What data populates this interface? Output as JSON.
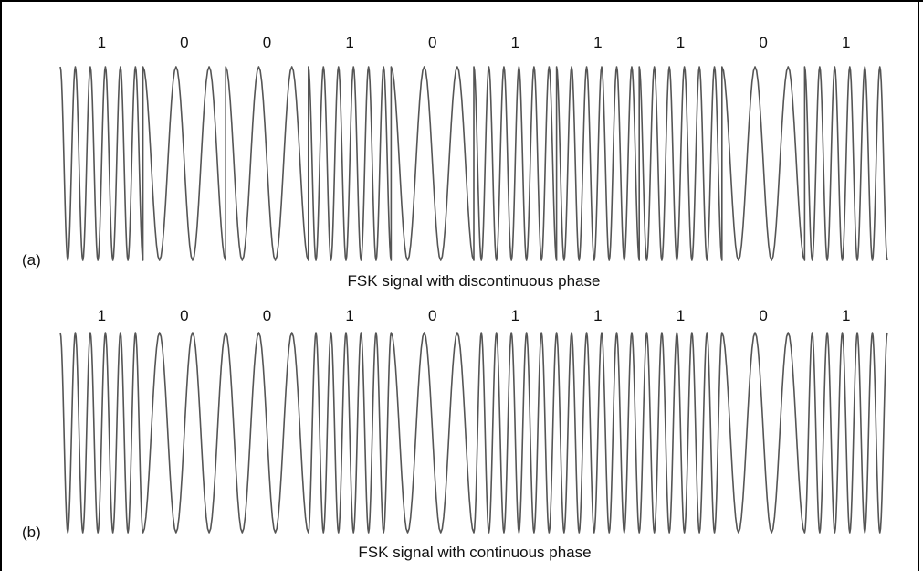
{
  "panels": [
    {
      "label": "(a)",
      "caption": "FSK signal with discontinuous phase",
      "bits": [
        "1",
        "0",
        "0",
        "1",
        "0",
        "1",
        "1",
        "1",
        "0",
        "1"
      ],
      "phase": "discontinuous"
    },
    {
      "label": "(b)",
      "caption": "FSK signal with continuous phase",
      "bits": [
        "1",
        "0",
        "0",
        "1",
        "0",
        "1",
        "1",
        "1",
        "0",
        "1"
      ],
      "phase": "continuous"
    }
  ],
  "colors": {
    "wave": "#555555",
    "text": "#111111",
    "border": "#000000"
  }
}
